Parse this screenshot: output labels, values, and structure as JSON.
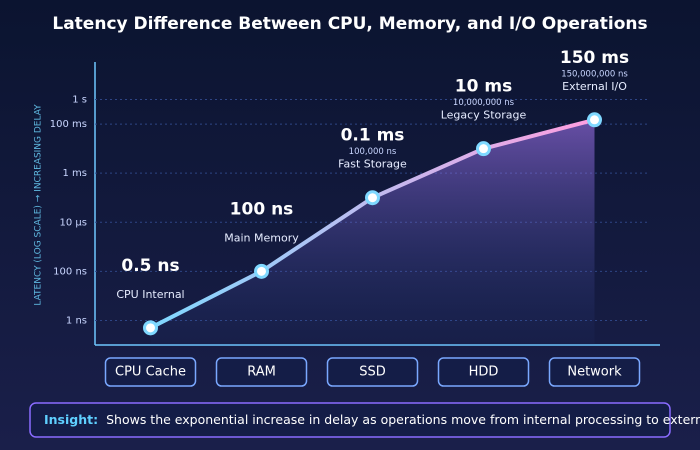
{
  "chart_data": {
    "type": "line",
    "title": "Latency Difference Between CPU, Memory, and I/O Operations",
    "y_label": "LATENCY (LOG SCALE) → INCREASING DELAY",
    "log_scale": true,
    "categories": [
      "CPU Cache",
      "RAM",
      "SSD",
      "HDD",
      "Network"
    ],
    "series": [
      {
        "name": "Latency",
        "color": "#7fd8ff",
        "values": [
          0.5,
          100,
          100000,
          10000000,
          150000000
        ],
        "value_labels": [
          "0.5 ns",
          "100 ns",
          "0.1 ms",
          "10 ms",
          "150 ms"
        ]
      }
    ],
    "detail_labels": [
      null,
      null,
      "100,000 ns",
      "10,000,000 ns",
      "150,000,000 ns"
    ],
    "descriptions": [
      "CPU Internal",
      "Main Memory",
      "Fast Storage",
      "Legacy Storage",
      "External I/O"
    ],
    "ylim": [
      0.1,
      10000000000
    ],
    "yticks": [
      {
        "value": 1,
        "label": "1 ns"
      },
      {
        "value": 100,
        "label": "100 ns"
      },
      {
        "value": 10000,
        "label": "10 µs"
      },
      {
        "value": 1000000,
        "label": "1 ms"
      },
      {
        "value": 100000000,
        "label": "100 ms"
      },
      {
        "value": 1000000000,
        "label": "1 s"
      }
    ],
    "grid": true,
    "insight": {
      "label": "Insight:",
      "text": "Shows the exponential increase in delay as operations move from internal processing to external I/O."
    }
  }
}
